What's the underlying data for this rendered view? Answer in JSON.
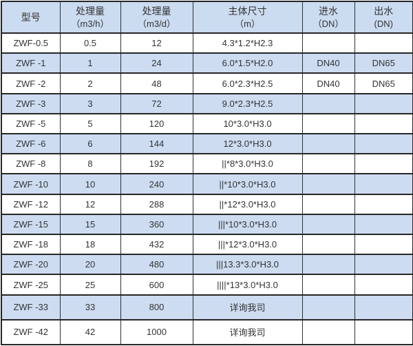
{
  "table": {
    "columns": [
      {
        "id": "model",
        "line1": "型号",
        "line2": ""
      },
      {
        "id": "capacity-h",
        "line1": "处理量",
        "line2": "（m3/h）"
      },
      {
        "id": "capacity-d",
        "line1": "处理量",
        "line2": "（m3/d）"
      },
      {
        "id": "dimensions",
        "line1": "主体尺寸",
        "line2": "（m）"
      },
      {
        "id": "inlet",
        "line1": "进水",
        "line2": "（DN）"
      },
      {
        "id": "outlet",
        "line1": "出水",
        "line2": "(DN)"
      }
    ],
    "rows": [
      [
        "ZWF-0.5",
        "0.5",
        "12",
        "4.3*1.2*H2.3",
        "",
        ""
      ],
      [
        "ZWF -1",
        "1",
        "24",
        "6.0*1.5*H2.0",
        "DN40",
        "DN65"
      ],
      [
        "ZWF -2",
        "2",
        "48",
        "6.0*2.3*H2.5",
        "DN40",
        "DN65"
      ],
      [
        "ZWF -3",
        "3",
        "72",
        "9.0*2.3*H2.5",
        "",
        ""
      ],
      [
        "ZWF -5",
        "5",
        "120",
        "10*3.0*H3.0",
        "",
        ""
      ],
      [
        "ZWF -6",
        "6",
        "144",
        "12*3.0*H3.0",
        "",
        ""
      ],
      [
        "ZWF -8",
        "8",
        "192",
        "||*8*3.0*H3.0",
        "",
        ""
      ],
      [
        "ZWF -10",
        "10",
        "240",
        "||*10*3.0*H3.0",
        "",
        ""
      ],
      [
        "ZWF -12",
        "12",
        "288",
        "||*12*3.0*H3.0",
        "",
        ""
      ],
      [
        "ZWF -15",
        "15",
        "360",
        "|||*10*3.0*H3.0",
        "",
        ""
      ],
      [
        "ZWF -18",
        "18",
        "432",
        "|||*12*3.0*H3.0",
        "",
        ""
      ],
      [
        "ZWF -20",
        "20",
        "480",
        "|||13.3*3.0*H3.0",
        "",
        ""
      ],
      [
        "ZWF -25",
        "25",
        "600",
        "||||*13*3.0*H3.0",
        "",
        ""
      ],
      [
        "ZWF -33",
        "33",
        "800",
        "详询我司",
        "",
        ""
      ],
      [
        "ZWF -42",
        "42",
        "1000",
        "详询我司",
        "",
        ""
      ]
    ],
    "colors": {
      "header_bg": "#cbdbf0",
      "row_alt_bg": "#cddcf1",
      "border": "#262626",
      "text": "#333333"
    }
  }
}
